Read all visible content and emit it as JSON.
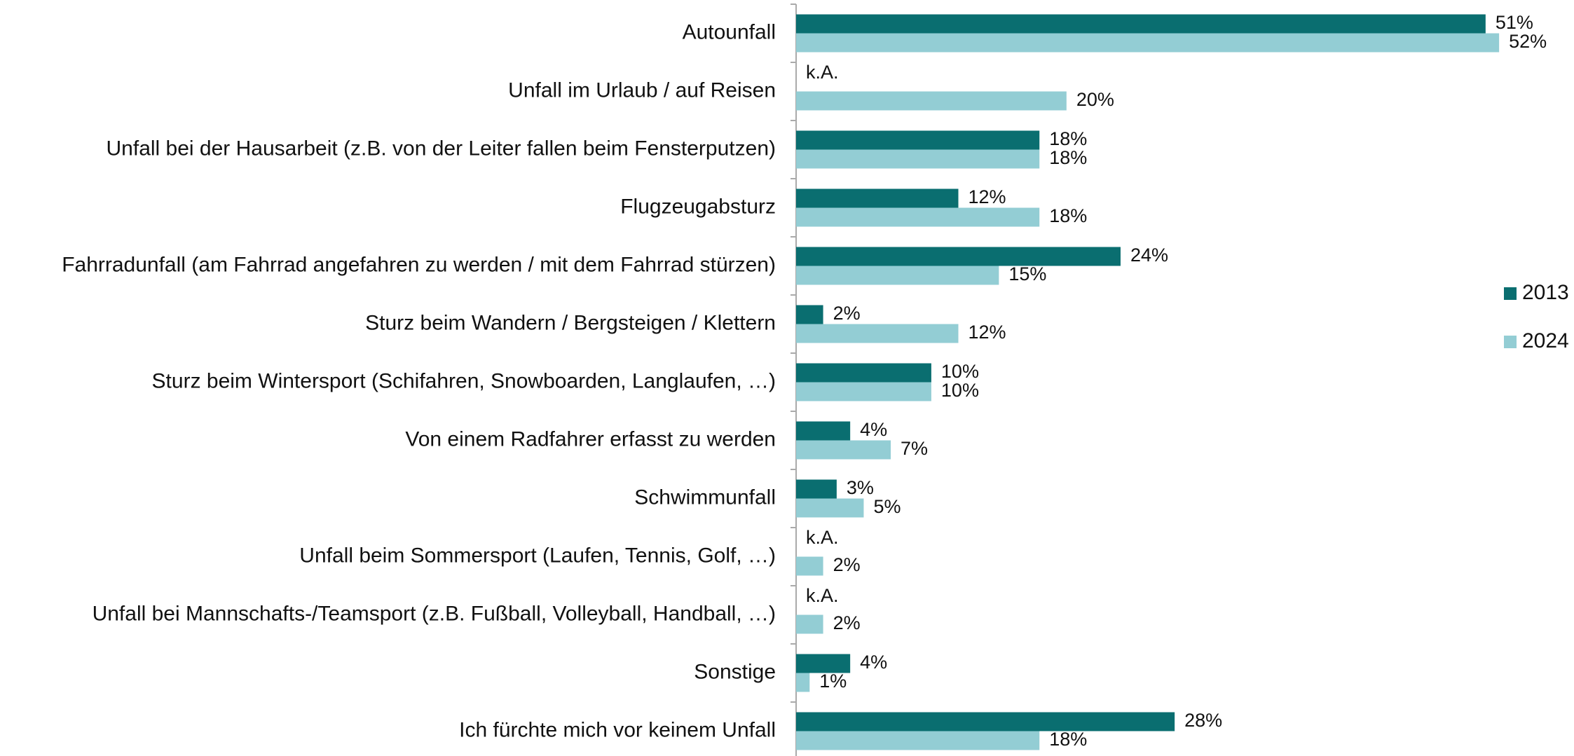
{
  "chart_data": {
    "type": "bar",
    "orientation": "horizontal",
    "categories": [
      "Autounfall",
      "Unfall im Urlaub / auf Reisen",
      "Unfall bei der Hausarbeit (z.B. von der Leiter fallen beim Fensterputzen)",
      "Flugzeugabsturz",
      "Fahrradunfall (am Fahrrad angefahren zu werden / mit dem Fahrrad stürzen)",
      "Sturz beim Wandern / Bergsteigen / Klettern",
      "Sturz beim Wintersport (Schifahren, Snowboarden, Langlaufen, …)",
      "Von einem Radfahrer erfasst zu werden",
      "Schwimmunfall",
      "Unfall beim Sommersport (Laufen, Tennis, Golf, …)",
      "Unfall bei Mannschafts-/Teamsport (z.B. Fußball, Volleyball, Handball, …)",
      "Sonstige",
      "Ich fürchte mich vor keinem Unfall"
    ],
    "series": [
      {
        "name": "2013",
        "color": "#0a6e70",
        "values": [
          51,
          null,
          18,
          12,
          24,
          2,
          10,
          4,
          3,
          null,
          null,
          4,
          28
        ],
        "value_labels": [
          "51%",
          "k.A.",
          "18%",
          "12%",
          "24%",
          "2%",
          "10%",
          "4%",
          "3%",
          "k.A.",
          "k.A.",
          "4%",
          "28%"
        ]
      },
      {
        "name": "2024",
        "color": "#93cdd4",
        "values": [
          52,
          20,
          18,
          18,
          15,
          12,
          10,
          7,
          5,
          2,
          2,
          1,
          18
        ],
        "value_labels": [
          "52%",
          "20%",
          "18%",
          "18%",
          "15%",
          "12%",
          "10%",
          "7%",
          "5%",
          "2%",
          "2%",
          "1%",
          "18%"
        ]
      }
    ],
    "xlim": [
      0,
      55
    ],
    "legend": "right"
  }
}
